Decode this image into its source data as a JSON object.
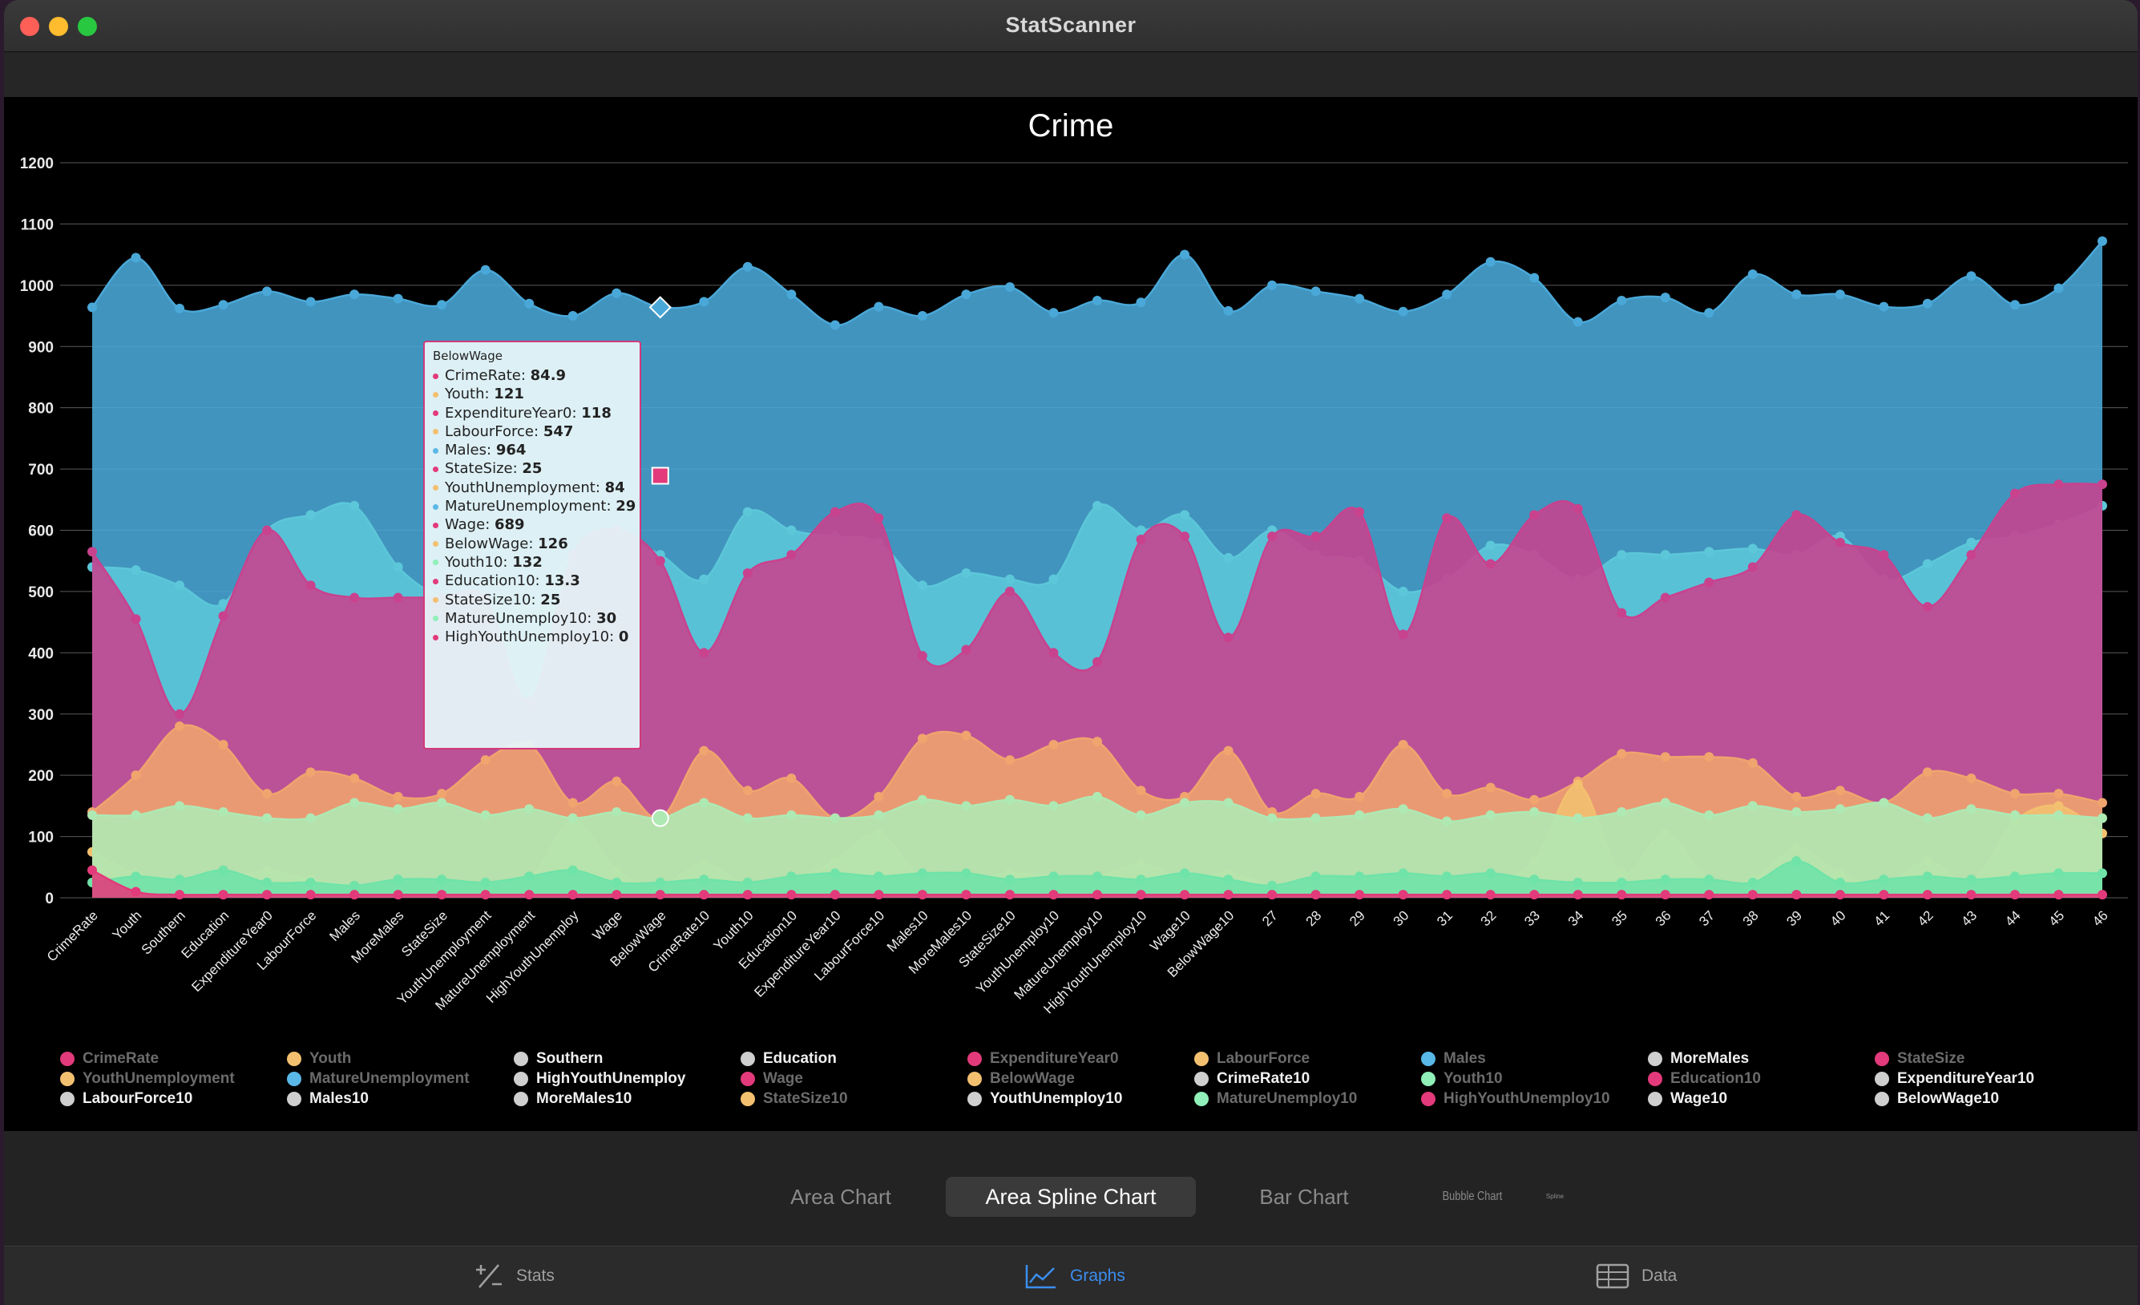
{
  "window": {
    "title": "StatScanner"
  },
  "chart_data": {
    "type": "area",
    "title": "Crime",
    "categories": [
      "CrimeRate",
      "Youth",
      "Southern",
      "Education",
      "ExpenditureYear0",
      "LabourForce",
      "Males",
      "MoreMales",
      "StateSize",
      "YouthUnemployment",
      "MatureUnemployment",
      "HighYouthUnemploy",
      "Wage",
      "BelowWage",
      "CrimeRate10",
      "Youth10",
      "Education10",
      "ExpenditureYear10",
      "LabourForce10",
      "Males10",
      "MoreMales10",
      "StateSize10",
      "YouthUnemploy10",
      "MatureUnemploy10",
      "HighYouthUnemploy10",
      "Wage10",
      "BelowWage10",
      "27",
      "28",
      "29",
      "30",
      "31",
      "32",
      "33",
      "34",
      "35",
      "36",
      "37",
      "38",
      "39",
      "40",
      "41",
      "42",
      "43",
      "44",
      "45",
      "46"
    ],
    "ylim": [
      0,
      1200
    ],
    "yticks": [
      0,
      100,
      200,
      300,
      400,
      500,
      600,
      700,
      800,
      900,
      1000,
      1100,
      1200
    ],
    "series": [
      {
        "name": "Males",
        "color": "#4aa8d8",
        "values": [
          964,
          1045,
          962,
          968,
          990,
          973,
          985,
          978,
          968,
          1025,
          970,
          950,
          987,
          964,
          973,
          1030,
          985,
          935,
          965,
          950,
          985,
          997,
          955,
          975,
          972,
          1050,
          958,
          1000,
          990,
          978,
          957,
          985,
          1038,
          1012,
          940,
          975,
          980,
          955,
          1018,
          985,
          985,
          965,
          970,
          1015,
          968,
          995,
          1072
        ]
      },
      {
        "name": "Youth10",
        "color": "#5cc7d9",
        "values": [
          540,
          535,
          510,
          480,
          600,
          625,
          640,
          540,
          490,
          480,
          480,
          560,
          590,
          560,
          520,
          630,
          600,
          590,
          580,
          510,
          530,
          520,
          520,
          640,
          600,
          625,
          555,
          600,
          560,
          550,
          500,
          520,
          575,
          560,
          520,
          560,
          560,
          565,
          570,
          560,
          590,
          520,
          545,
          580,
          590,
          610,
          640
        ]
      },
      {
        "name": "Wage",
        "color": "#c8428e",
        "values": [
          565,
          455,
          300,
          460,
          600,
          510,
          490,
          490,
          490,
          490,
          320,
          560,
          600,
          550,
          400,
          530,
          560,
          630,
          620,
          395,
          405,
          500,
          400,
          385,
          585,
          590,
          425,
          590,
          590,
          630,
          430,
          620,
          545,
          625,
          635,
          465,
          490,
          515,
          540,
          625,
          580,
          560,
          475,
          560,
          660,
          675,
          675
        ]
      },
      {
        "name": "BelowWage",
        "color": "#f0a46e",
        "values": [
          140,
          200,
          280,
          250,
          170,
          205,
          195,
          165,
          170,
          225,
          250,
          155,
          190,
          130,
          240,
          175,
          195,
          130,
          165,
          260,
          265,
          225,
          250,
          255,
          175,
          165,
          240,
          140,
          170,
          165,
          250,
          170,
          180,
          160,
          190,
          235,
          230,
          230,
          220,
          165,
          175,
          155,
          205,
          195,
          170,
          170,
          155
        ]
      },
      {
        "name": "Youth",
        "color": "#f3c070",
        "values": [
          75,
          40,
          30,
          30,
          45,
          30,
          20,
          15,
          20,
          25,
          30,
          125,
          45,
          20,
          55,
          20,
          30,
          60,
          105,
          30,
          30,
          40,
          35,
          35,
          55,
          30,
          40,
          20,
          20,
          20,
          25,
          25,
          25,
          60,
          185,
          40,
          105,
          30,
          30,
          80,
          40,
          20,
          60,
          25,
          125,
          150,
          105
        ]
      },
      {
        "name": "MatureUnemploy10",
        "color": "#aee9b4",
        "values": [
          135,
          135,
          150,
          140,
          130,
          130,
          155,
          145,
          155,
          135,
          145,
          130,
          140,
          130,
          155,
          130,
          135,
          130,
          135,
          160,
          150,
          160,
          150,
          165,
          135,
          155,
          155,
          130,
          130,
          135,
          145,
          125,
          135,
          140,
          130,
          140,
          155,
          135,
          150,
          140,
          145,
          155,
          130,
          145,
          135,
          135,
          130
        ]
      },
      {
        "name": "Education10",
        "color": "#6fe3a8",
        "values": [
          25,
          35,
          30,
          45,
          25,
          25,
          20,
          30,
          30,
          25,
          35,
          45,
          25,
          25,
          30,
          25,
          35,
          40,
          35,
          40,
          40,
          30,
          35,
          35,
          30,
          40,
          30,
          20,
          35,
          35,
          40,
          35,
          40,
          30,
          25,
          25,
          30,
          30,
          25,
          60,
          25,
          30,
          35,
          30,
          35,
          40,
          40
        ]
      },
      {
        "name": "CrimeRate",
        "color": "#e23a7a",
        "values": [
          45,
          10,
          5,
          5,
          5,
          5,
          5,
          5,
          5,
          5,
          5,
          5,
          5,
          5,
          5,
          5,
          5,
          5,
          5,
          5,
          5,
          5,
          5,
          5,
          5,
          5,
          5,
          5,
          5,
          5,
          5,
          5,
          5,
          5,
          5,
          5,
          5,
          5,
          5,
          5,
          5,
          5,
          5,
          5,
          5,
          5,
          5
        ]
      }
    ],
    "legend": [
      {
        "name": "CrimeRate",
        "color": "#e23a7a",
        "on": false
      },
      {
        "name": "Youth",
        "color": "#f3c070",
        "on": false
      },
      {
        "name": "Southern",
        "color": "#cfcfcf",
        "on": true
      },
      {
        "name": "Education",
        "color": "#cfcfcf",
        "on": true
      },
      {
        "name": "ExpenditureYear0",
        "color": "#e23a7a",
        "on": false
      },
      {
        "name": "LabourForce",
        "color": "#f3c070",
        "on": false
      },
      {
        "name": "Males",
        "color": "#5ab8e8",
        "on": false
      },
      {
        "name": "MoreMales",
        "color": "#cfcfcf",
        "on": true
      },
      {
        "name": "StateSize",
        "color": "#e23a7a",
        "on": false
      },
      {
        "name": "YouthUnemployment",
        "color": "#f3c070",
        "on": false
      },
      {
        "name": "MatureUnemployment",
        "color": "#5ab8e8",
        "on": false
      },
      {
        "name": "HighYouthUnemploy",
        "color": "#cfcfcf",
        "on": true
      },
      {
        "name": "Wage",
        "color": "#e23a7a",
        "on": false
      },
      {
        "name": "BelowWage",
        "color": "#f3c070",
        "on": false
      },
      {
        "name": "CrimeRate10",
        "color": "#cfcfcf",
        "on": true
      },
      {
        "name": "Youth10",
        "color": "#8ff0b8",
        "on": false
      },
      {
        "name": "Education10",
        "color": "#e23a7a",
        "on": false
      },
      {
        "name": "ExpenditureYear10",
        "color": "#cfcfcf",
        "on": true
      },
      {
        "name": "LabourForce10",
        "color": "#cfcfcf",
        "on": true
      },
      {
        "name": "Males10",
        "color": "#cfcfcf",
        "on": true
      },
      {
        "name": "MoreMales10",
        "color": "#cfcfcf",
        "on": true
      },
      {
        "name": "StateSize10",
        "color": "#f3c070",
        "on": false
      },
      {
        "name": "YouthUnemploy10",
        "color": "#cfcfcf",
        "on": true
      },
      {
        "name": "MatureUnemploy10",
        "color": "#8ff0b8",
        "on": false
      },
      {
        "name": "HighYouthUnemploy10",
        "color": "#e23a7a",
        "on": false
      },
      {
        "name": "Wage10",
        "color": "#cfcfcf",
        "on": true
      },
      {
        "name": "BelowWage10",
        "color": "#cfcfcf",
        "on": true
      }
    ],
    "grid": true
  },
  "tooltip": {
    "title": "BelowWage",
    "rows": [
      {
        "label": "CrimeRate",
        "value": "84.9",
        "color": "#e23a7a"
      },
      {
        "label": "Youth",
        "value": "121",
        "color": "#f3c070"
      },
      {
        "label": "ExpenditureYear0",
        "value": "118",
        "color": "#e23a7a"
      },
      {
        "label": "LabourForce",
        "value": "547",
        "color": "#f3c070"
      },
      {
        "label": "Males",
        "value": "964",
        "color": "#5ab8e8"
      },
      {
        "label": "StateSize",
        "value": "25",
        "color": "#e23a7a"
      },
      {
        "label": "YouthUnemployment",
        "value": "84",
        "color": "#f3c070"
      },
      {
        "label": "MatureUnemployment",
        "value": "29",
        "color": "#5ab8e8"
      },
      {
        "label": "Wage",
        "value": "689",
        "color": "#e23a7a"
      },
      {
        "label": "BelowWage",
        "value": "126",
        "color": "#f3c070"
      },
      {
        "label": "Youth10",
        "value": "132",
        "color": "#8ff0b8"
      },
      {
        "label": "Education10",
        "value": "13.3",
        "color": "#e23a7a"
      },
      {
        "label": "StateSize10",
        "value": "25",
        "color": "#f3c070"
      },
      {
        "label": "MatureUnemploy10",
        "value": "30",
        "color": "#8ff0b8"
      },
      {
        "label": "HighYouthUnemploy10",
        "value": "0",
        "color": "#e23a7a"
      }
    ]
  },
  "chart_types": [
    "Area Chart",
    "Area Spline Chart",
    "Bar Chart",
    "Bubble Chart",
    "Spline"
  ],
  "selected_chart_type": "Area Spline Chart",
  "tabs": [
    {
      "label": "Stats",
      "icon": "plus-minus-icon"
    },
    {
      "label": "Graphs",
      "icon": "line-chart-icon",
      "active": true
    },
    {
      "label": "Data",
      "icon": "table-icon"
    }
  ]
}
